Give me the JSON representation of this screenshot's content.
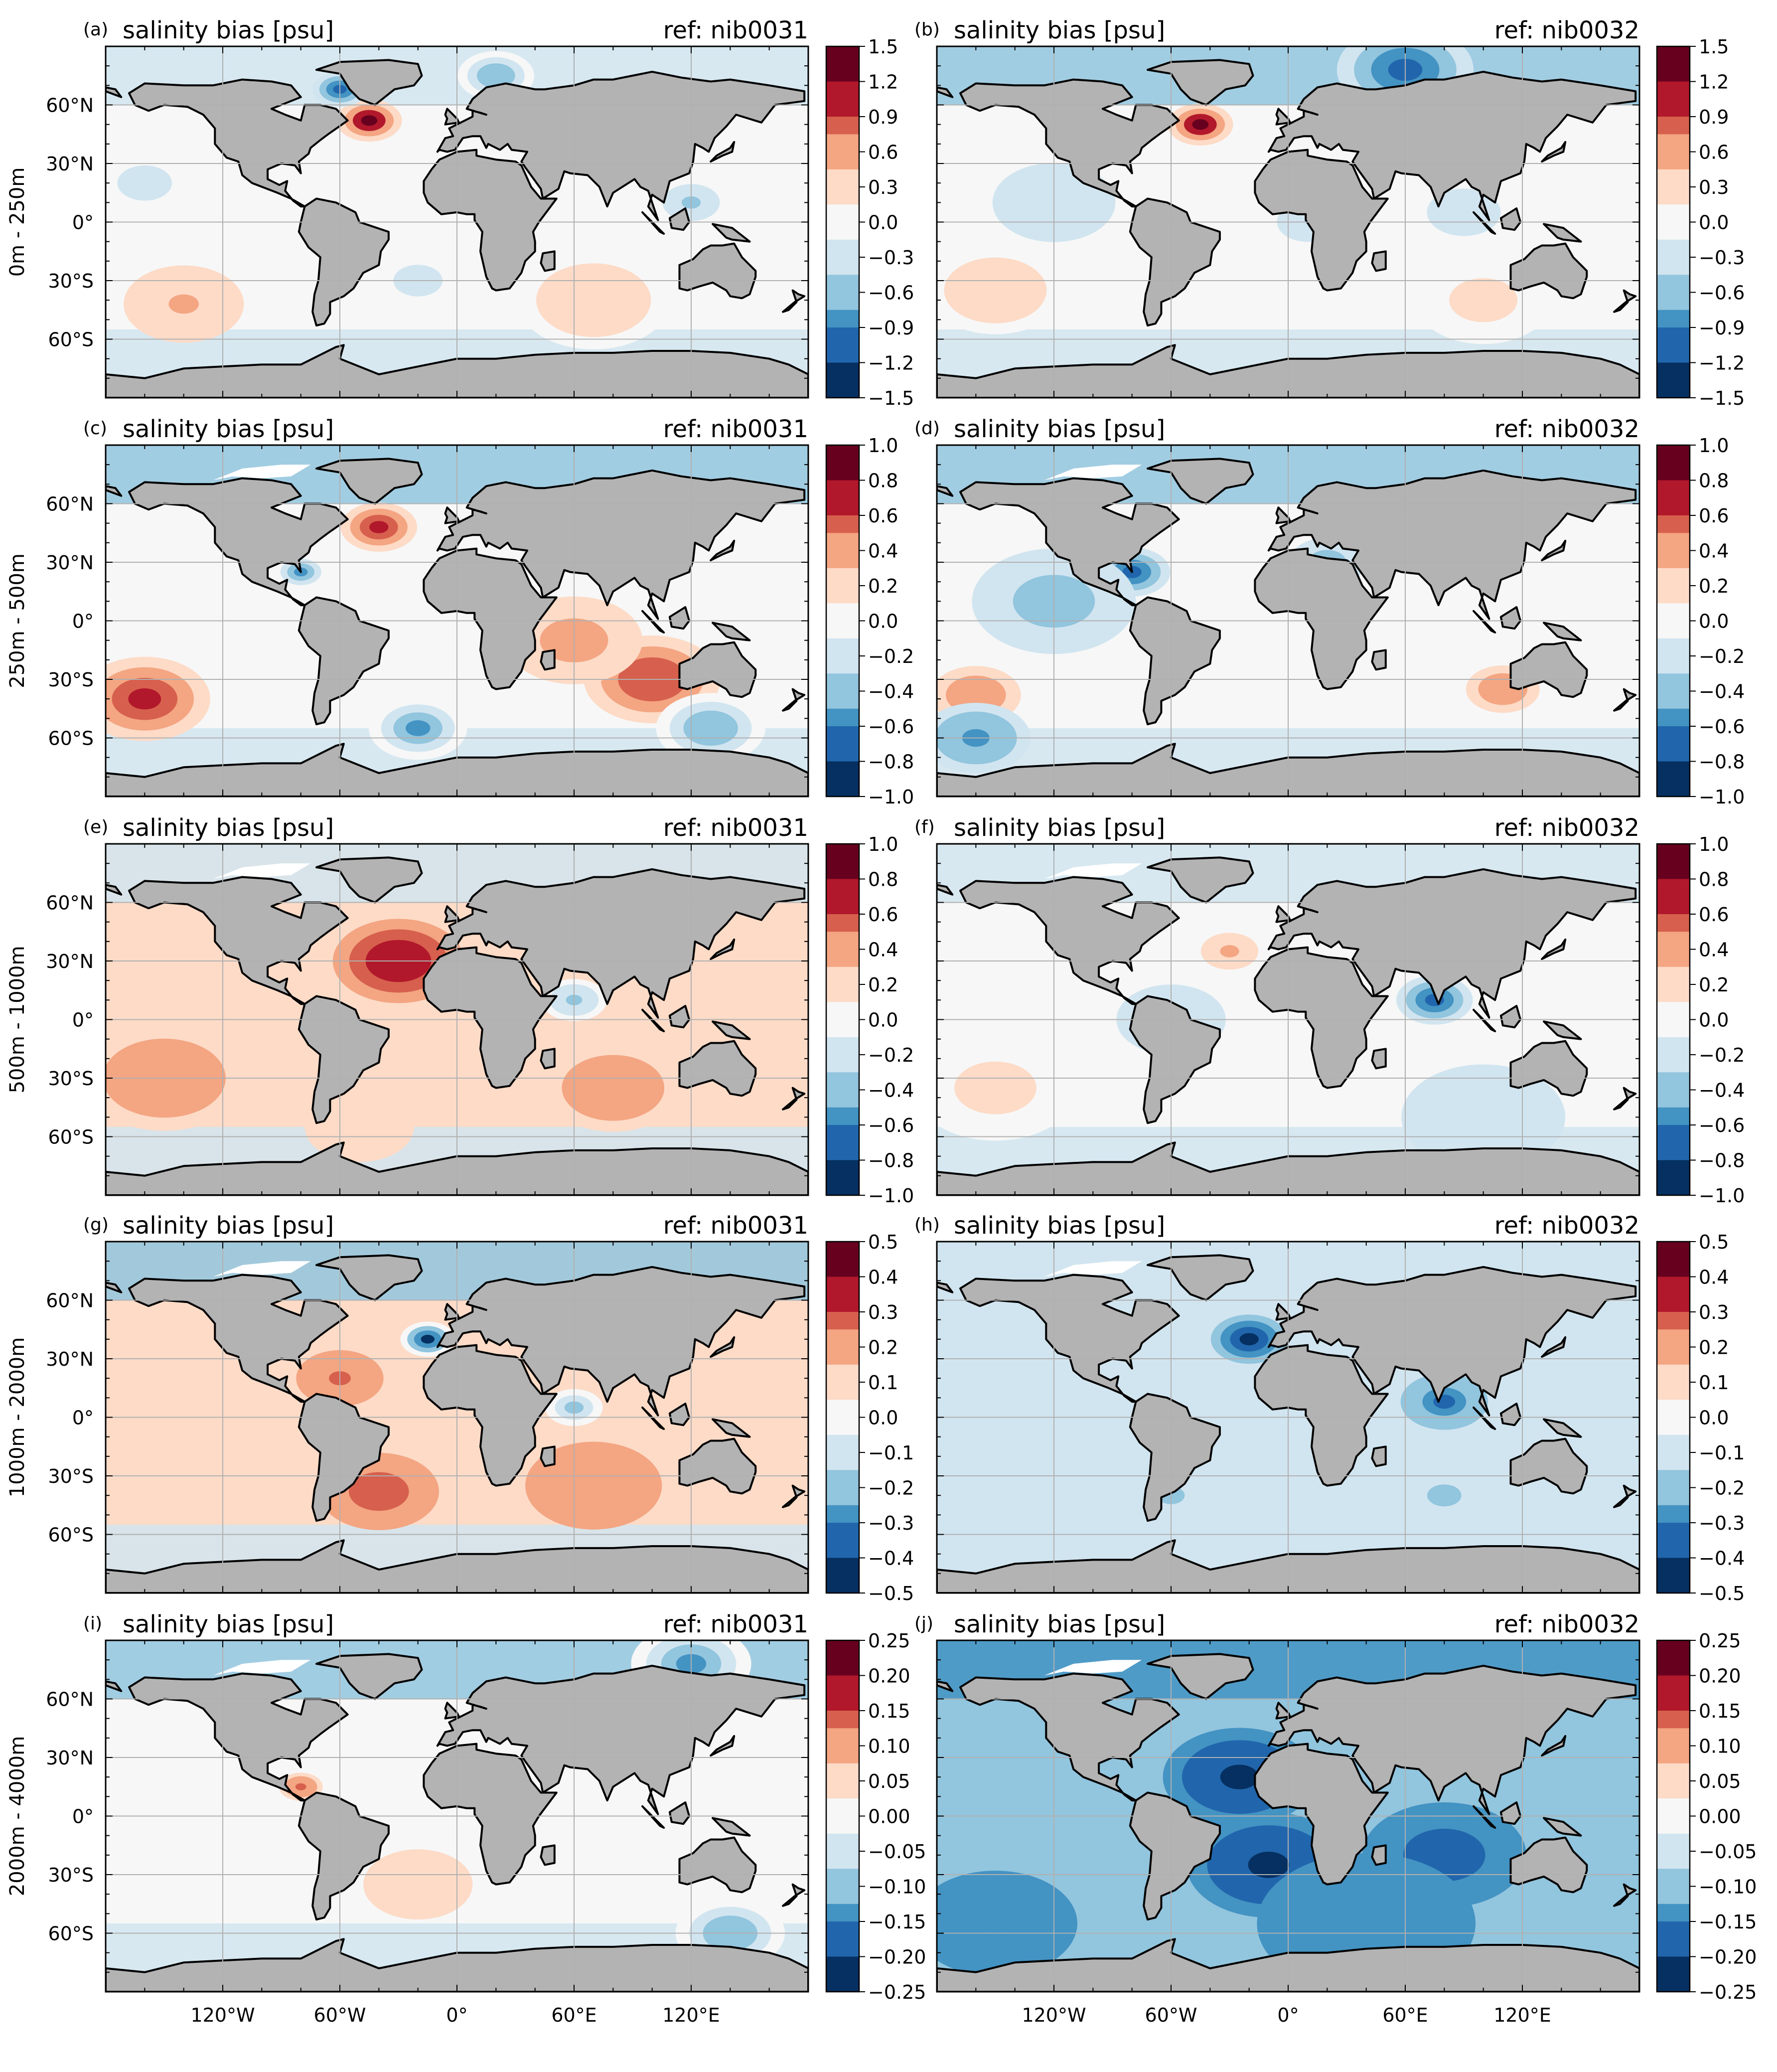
{
  "figure": {
    "x_ticks": [
      "120°W",
      "60°W",
      "0°",
      "60°E",
      "120°E"
    ],
    "y_ticks": [
      "60°N",
      "30°N",
      "0°",
      "30°S",
      "60°S"
    ],
    "rows": [
      {
        "depth_label": "0m - 250m",
        "colorbar": {
          "min": -1.5,
          "max": 1.5,
          "ticks": [
            "1.5",
            "1.2",
            "0.9",
            "0.6",
            "0.3",
            "0.0",
            "−0.3",
            "−0.6",
            "−0.9",
            "−1.2",
            "−1.5"
          ]
        },
        "panels": [
          {
            "letter": "(a)",
            "title": "salinity bias [psu]",
            "ref": "ref: nib0031",
            "features": [
              {
                "lon": -45,
                "lat": 52,
                "r": 12,
                "v": 1.3
              },
              {
                "lon": -60,
                "lat": 68,
                "r": 10,
                "v": -1.2
              },
              {
                "lon": -140,
                "lat": -42,
                "r": 22,
                "v": 0.45
              },
              {
                "lon": 70,
                "lat": -40,
                "r": 28,
                "v": 0.35
              },
              {
                "lon": 20,
                "lat": 75,
                "r": 14,
                "v": -0.6
              },
              {
                "lon": -20,
                "lat": -30,
                "r": 18,
                "v": -0.2
              },
              {
                "lon": 120,
                "lat": 10,
                "r": 14,
                "v": -0.5
              },
              {
                "lon": -160,
                "lat": 20,
                "r": 20,
                "v": -0.25
              }
            ]
          },
          {
            "letter": "(b)",
            "title": "salinity bias [psu]",
            "ref": "ref: nib0032",
            "features": [
              {
                "lon": -45,
                "lat": 50,
                "r": 12,
                "v": 1.3
              },
              {
                "lon": 60,
                "lat": 78,
                "r": 25,
                "v": -1.0
              },
              {
                "lon": -150,
                "lat": -35,
                "r": 25,
                "v": 0.4
              },
              {
                "lon": -120,
                "lat": 10,
                "r": 30,
                "v": -0.35
              },
              {
                "lon": 10,
                "lat": 0,
                "r": 15,
                "v": -0.3
              },
              {
                "lon": 90,
                "lat": 5,
                "r": 18,
                "v": -0.3
              },
              {
                "lon": 100,
                "lat": -40,
                "r": 25,
                "v": 0.3
              }
            ]
          }
        ]
      },
      {
        "depth_label": "250m - 500m",
        "colorbar": {
          "min": -1.0,
          "max": 1.0,
          "ticks": [
            "1.0",
            "0.8",
            "0.6",
            "0.4",
            "0.2",
            "0.0",
            "−0.2",
            "−0.4",
            "−0.6",
            "−0.8",
            "−1.0"
          ]
        },
        "panels": [
          {
            "letter": "(c)",
            "title": "salinity bias [psu]",
            "ref": "ref: nib0031",
            "features": [
              {
                "lon": -160,
                "lat": -40,
                "r": 24,
                "v": 0.8
              },
              {
                "lon": -40,
                "lat": 48,
                "r": 14,
                "v": 0.7
              },
              {
                "lon": 100,
                "lat": -30,
                "r": 25,
                "v": 0.6
              },
              {
                "lon": 60,
                "lat": -10,
                "r": 25,
                "v": 0.35
              },
              {
                "lon": -80,
                "lat": 25,
                "r": 10,
                "v": -0.5
              },
              {
                "lon": -20,
                "lat": -55,
                "r": 18,
                "v": -0.5
              },
              {
                "lon": 130,
                "lat": -55,
                "r": 20,
                "v": -0.4
              }
            ]
          },
          {
            "letter": "(d)",
            "title": "salinity bias [psu]",
            "ref": "ref: nib0032",
            "features": [
              {
                "lon": -80,
                "lat": 25,
                "r": 14,
                "v": -0.7
              },
              {
                "lon": -160,
                "lat": -38,
                "r": 22,
                "v": 0.45
              },
              {
                "lon": -120,
                "lat": 10,
                "r": 30,
                "v": -0.4
              },
              {
                "lon": -160,
                "lat": -60,
                "r": 20,
                "v": -0.5
              },
              {
                "lon": 110,
                "lat": -35,
                "r": 18,
                "v": 0.4
              },
              {
                "lon": 20,
                "lat": 30,
                "r": 14,
                "v": -0.4
              }
            ]
          }
        ]
      },
      {
        "depth_label": "500m - 1000m",
        "colorbar": {
          "min": -1.0,
          "max": 1.0,
          "ticks": [
            "1.0",
            "0.8",
            "0.6",
            "0.4",
            "0.2",
            "0.0",
            "−0.2",
            "−0.4",
            "−0.6",
            "−0.8",
            "−1.0"
          ]
        },
        "panels": [
          {
            "letter": "(e)",
            "title": "salinity bias [psu]",
            "ref": "ref: nib0031",
            "features": [
              {
                "lon": -30,
                "lat": 30,
                "r": 24,
                "v": 0.8
              },
              {
                "lon": -150,
                "lat": -30,
                "r": 30,
                "v": 0.35
              },
              {
                "lon": 80,
                "lat": -35,
                "r": 25,
                "v": 0.35
              },
              {
                "lon": 60,
                "lat": 10,
                "r": 12,
                "v": -0.4
              },
              {
                "lon": -50,
                "lat": -55,
                "r": 20,
                "v": 0.2
              }
            ]
          },
          {
            "letter": "(f)",
            "title": "salinity bias [psu]",
            "ref": "ref: nib0032",
            "features": [
              {
                "lon": 75,
                "lat": 10,
                "r": 14,
                "v": -0.7
              },
              {
                "lon": -30,
                "lat": 35,
                "r": 14,
                "v": 0.3
              },
              {
                "lon": -150,
                "lat": -35,
                "r": 30,
                "v": 0.2
              },
              {
                "lon": -60,
                "lat": 0,
                "r": 20,
                "v": -0.3
              },
              {
                "lon": 100,
                "lat": -50,
                "r": 30,
                "v": -0.25
              }
            ]
          }
        ]
      },
      {
        "depth_label": "1000m - 2000m",
        "colorbar": {
          "min": -0.5,
          "max": 0.5,
          "ticks": [
            "0.5",
            "0.4",
            "0.3",
            "0.2",
            "0.1",
            "0.0",
            "−0.1",
            "−0.2",
            "−0.3",
            "−0.4",
            "−0.5"
          ]
        },
        "panels": [
          {
            "letter": "(g)",
            "title": "salinity bias [psu]",
            "ref": "ref: nib0031",
            "features": [
              {
                "lon": -15,
                "lat": 40,
                "r": 10,
                "v": -0.45
              },
              {
                "lon": -40,
                "lat": -38,
                "r": 22,
                "v": 0.3
              },
              {
                "lon": -60,
                "lat": 20,
                "r": 16,
                "v": 0.25
              },
              {
                "lon": 70,
                "lat": -35,
                "r": 25,
                "v": 0.2
              },
              {
                "lon": 60,
                "lat": 5,
                "r": 14,
                "v": -0.15
              }
            ]
          },
          {
            "letter": "(h)",
            "title": "salinity bias [psu]",
            "ref": "ref: nib0032",
            "features": [
              {
                "lon": -20,
                "lat": 40,
                "r": 14,
                "v": -0.45
              },
              {
                "lon": 80,
                "lat": 8,
                "r": 16,
                "v": -0.35
              },
              {
                "lon": -60,
                "lat": -40,
                "r": 20,
                "v": -0.15
              },
              {
                "lon": 80,
                "lat": -40,
                "r": 25,
                "v": -0.15
              }
            ]
          }
        ]
      },
      {
        "depth_label": "2000m - 4000m",
        "colorbar": {
          "min": -0.25,
          "max": 0.25,
          "ticks": [
            "0.25",
            "0.20",
            "0.15",
            "0.10",
            "0.05",
            "0.00",
            "−0.05",
            "−0.10",
            "−0.15",
            "−0.20",
            "−0.25"
          ]
        },
        "panels": [
          {
            "letter": "(i)",
            "title": "salinity bias [psu]",
            "ref": "ref: nib0031",
            "features": [
              {
                "lon": -80,
                "lat": 15,
                "r": 8,
                "v": 0.12
              },
              {
                "lon": 120,
                "lat": 78,
                "r": 22,
                "v": -0.15
              },
              {
                "lon": -20,
                "lat": -35,
                "r": 20,
                "v": 0.06
              },
              {
                "lon": 140,
                "lat": -60,
                "r": 20,
                "v": -0.1
              },
              {
                "lon": 0,
                "lat": 15,
                "r": 15,
                "v": -0.04
              }
            ]
          },
          {
            "letter": "(j)",
            "title": "salinity bias [psu]",
            "ref": "ref: nib0032",
            "features": [
              {
                "lon": -25,
                "lat": 20,
                "r": 28,
                "v": -0.22
              },
              {
                "lon": -10,
                "lat": -25,
                "r": 30,
                "v": -0.22
              },
              {
                "lon": 80,
                "lat": -20,
                "r": 30,
                "v": -0.18
              },
              {
                "lon": 40,
                "lat": -55,
                "r": 40,
                "v": -0.15
              },
              {
                "lon": -150,
                "lat": -55,
                "r": 30,
                "v": -0.15
              }
            ]
          }
        ]
      }
    ],
    "base_values": [
      {
        "base": 0.05,
        "hi_lat": -0.4
      },
      {
        "base": -0.05,
        "hi_lat": -0.5
      },
      {
        "base": 0.08,
        "hi_lat": -0.3
      },
      {
        "base": -0.05,
        "hi_lat": -0.35
      },
      {
        "base": 0.2,
        "hi_lat": -0.2
      },
      {
        "base": -0.08,
        "hi_lat": -0.2
      },
      {
        "base": 0.12,
        "hi_lat": -0.15
      },
      {
        "base": -0.08,
        "hi_lat": -0.12
      },
      {
        "base": 0.02,
        "hi_lat": -0.08
      },
      {
        "base": -0.11,
        "hi_lat": -0.12
      }
    ],
    "colors": {
      "land": "#b3b3b3",
      "coast": "#000000",
      "grid": "#b0b0b0",
      "cmap": [
        "#053061",
        "#2166ac",
        "#4393c3",
        "#92c5de",
        "#d1e5f0",
        "#f7f7f7",
        "#fddbc7",
        "#f4a582",
        "#d6604d",
        "#b2182b",
        "#67001f"
      ]
    }
  }
}
